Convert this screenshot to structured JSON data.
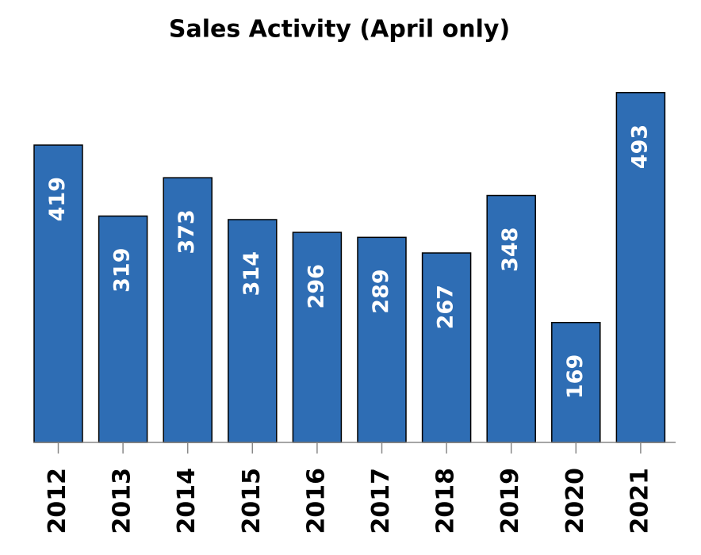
{
  "chart_data": {
    "type": "bar",
    "title": "Sales Activity (April only)",
    "categories": [
      "2012",
      "2013",
      "2014",
      "2015",
      "2016",
      "2017",
      "2018",
      "2019",
      "2020",
      "2021"
    ],
    "values": [
      419,
      319,
      373,
      314,
      296,
      289,
      267,
      348,
      169,
      493
    ],
    "color": "#2e6db4",
    "ylim": [
      0,
      500
    ]
  }
}
